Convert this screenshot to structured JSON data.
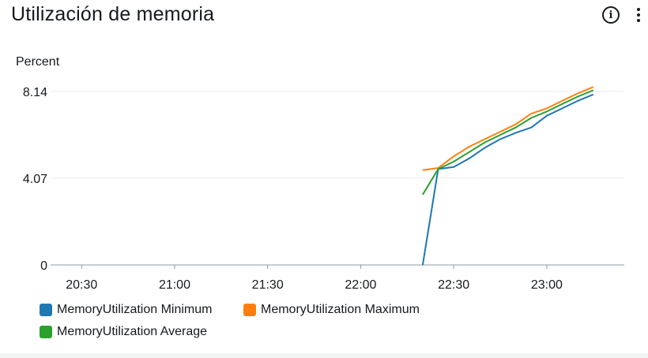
{
  "widget": {
    "title": "Utilización de memoria",
    "info_icon": "info-circle-icon",
    "more_icon": "vertical-ellipsis-icon"
  },
  "chart_data": {
    "type": "line",
    "title": "Utilización de memoria",
    "ylabel": "Percent",
    "xlabel": "",
    "ylim": [
      0,
      8.14
    ],
    "xlim": [
      "20:20",
      "23:25"
    ],
    "y_ticks": [
      "0",
      "4.07",
      "8.14"
    ],
    "x_ticks": [
      "20:30",
      "21:00",
      "21:30",
      "22:00",
      "22:30",
      "23:00"
    ],
    "grid": "horizontal",
    "legend_position": "bottom",
    "series": [
      {
        "name": "MemoryUtilization Minimum",
        "color": "#1f77b4",
        "points": [
          [
            "22:20",
            0
          ],
          [
            "22:25",
            4.5
          ],
          [
            "22:30",
            4.6
          ],
          [
            "22:35",
            5.0
          ],
          [
            "22:40",
            5.5
          ],
          [
            "22:45",
            5.9
          ],
          [
            "22:50",
            6.2
          ],
          [
            "22:55",
            6.45
          ],
          [
            "23:00",
            7.0
          ],
          [
            "23:05",
            7.35
          ],
          [
            "23:10",
            7.7
          ],
          [
            "23:15",
            8.0
          ]
        ]
      },
      {
        "name": "MemoryUtilization Maximum",
        "color": "#ff7f0e",
        "points": [
          [
            "22:20",
            4.45
          ],
          [
            "22:25",
            4.55
          ],
          [
            "22:30",
            5.1
          ],
          [
            "22:35",
            5.55
          ],
          [
            "22:40",
            5.9
          ],
          [
            "22:45",
            6.25
          ],
          [
            "22:50",
            6.6
          ],
          [
            "22:55",
            7.1
          ],
          [
            "23:00",
            7.35
          ],
          [
            "23:05",
            7.7
          ],
          [
            "23:10",
            8.05
          ],
          [
            "23:15",
            8.35
          ]
        ]
      },
      {
        "name": "MemoryUtilization Average",
        "color": "#2ca02c",
        "points": [
          [
            "22:20",
            3.3
          ],
          [
            "22:25",
            4.5
          ],
          [
            "22:30",
            4.85
          ],
          [
            "22:35",
            5.3
          ],
          [
            "22:40",
            5.75
          ],
          [
            "22:45",
            6.1
          ],
          [
            "22:50",
            6.45
          ],
          [
            "22:55",
            6.9
          ],
          [
            "23:00",
            7.2
          ],
          [
            "23:05",
            7.55
          ],
          [
            "23:10",
            7.9
          ],
          [
            "23:15",
            8.2
          ]
        ]
      }
    ]
  }
}
